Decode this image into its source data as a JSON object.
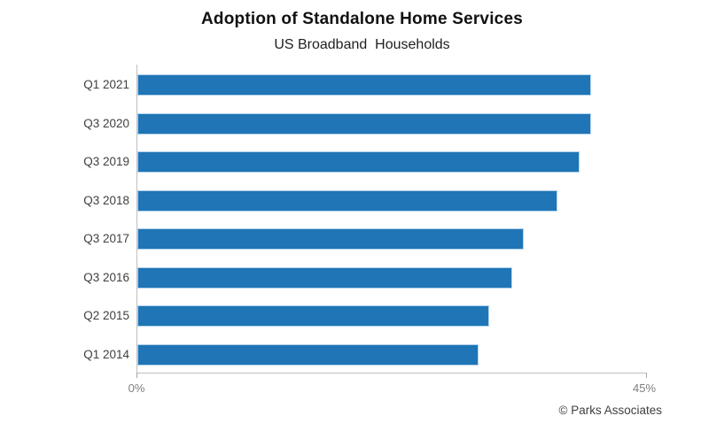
{
  "page": {
    "background": "#ffffff"
  },
  "chart_data": {
    "type": "bar",
    "orientation": "horizontal",
    "title": "Adoption of Standalone Home Services",
    "subtitle": "US Broadband  Households",
    "categories": [
      "Q1 2021",
      "Q3 2020",
      "Q3 2019",
      "Q3 2018",
      "Q3 2017",
      "Q3 2016",
      "Q2 2015",
      "Q1 2014"
    ],
    "values": [
      40,
      40,
      39,
      37,
      34,
      33,
      31,
      30
    ],
    "unit": "%",
    "xlabel": "",
    "ylabel": "",
    "xlim": [
      0,
      45
    ],
    "x_ticks": [
      "0%",
      "45%"
    ],
    "grid": false,
    "legend": false,
    "bar_color": "#1f75b5",
    "bar_border_color": "#afd0ec",
    "axis_color": "#bfbfbf",
    "tick_label_color": "#7f7f7f",
    "category_label_color": "#3f3f3f"
  },
  "attribution": "© Parks Associates"
}
